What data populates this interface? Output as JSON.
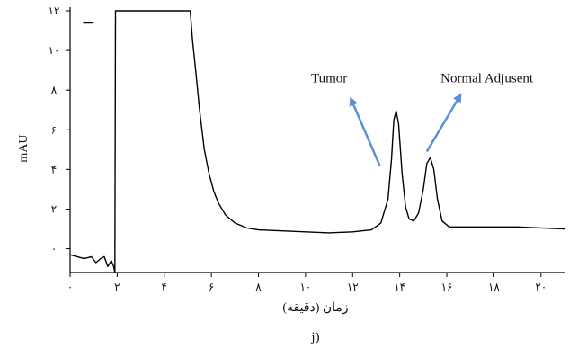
{
  "chart_data": {
    "type": "line",
    "panel_label": "j)",
    "xlabel": "زمان (دقیقه)",
    "ylabel": "mAU",
    "xlim": [
      0,
      21
    ],
    "ylim": [
      -1.2,
      12
    ],
    "xticks": [
      {
        "value": 0,
        "label": "۰"
      },
      {
        "value": 2,
        "label": "۲"
      },
      {
        "value": 4,
        "label": "۴"
      },
      {
        "value": 6,
        "label": "۶"
      },
      {
        "value": 8,
        "label": "۸"
      },
      {
        "value": 10,
        "label": "۱۰"
      },
      {
        "value": 12,
        "label": "۱۲"
      },
      {
        "value": 14,
        "label": "۱۴"
      },
      {
        "value": 16,
        "label": "۱۶"
      },
      {
        "value": 18,
        "label": "۱۸"
      },
      {
        "value": 20,
        "label": "۲۰"
      }
    ],
    "yticks": [
      {
        "value": 0,
        "label": "۰"
      },
      {
        "value": 2,
        "label": "۲"
      },
      {
        "value": 4,
        "label": "۴"
      },
      {
        "value": 6,
        "label": "۶"
      },
      {
        "value": 8,
        "label": "۸"
      },
      {
        "value": 10,
        "label": "۱۰"
      },
      {
        "value": 12,
        "label": "۱۲"
      }
    ],
    "series": [
      {
        "color": "#000000",
        "points": [
          [
            0.0,
            -0.3
          ],
          [
            0.3,
            -0.4
          ],
          [
            0.6,
            -0.5
          ],
          [
            0.9,
            -0.4
          ],
          [
            1.1,
            -0.7
          ],
          [
            1.3,
            -0.5
          ],
          [
            1.45,
            -0.4
          ],
          [
            1.6,
            -0.9
          ],
          [
            1.75,
            -0.6
          ],
          [
            1.85,
            -0.9
          ],
          [
            1.9,
            -1.2
          ],
          [
            1.93,
            12.0
          ],
          [
            5.1,
            12.0
          ],
          [
            5.2,
            10.5
          ],
          [
            5.35,
            8.8
          ],
          [
            5.5,
            7.0
          ],
          [
            5.7,
            5.0
          ],
          [
            5.9,
            3.8
          ],
          [
            6.1,
            2.9
          ],
          [
            6.3,
            2.3
          ],
          [
            6.6,
            1.7
          ],
          [
            7.0,
            1.3
          ],
          [
            7.5,
            1.05
          ],
          [
            8.0,
            0.95
          ],
          [
            9.0,
            0.9
          ],
          [
            10.0,
            0.85
          ],
          [
            11.0,
            0.8
          ],
          [
            12.0,
            0.85
          ],
          [
            12.8,
            0.95
          ],
          [
            13.2,
            1.3
          ],
          [
            13.5,
            2.5
          ],
          [
            13.65,
            4.5
          ],
          [
            13.75,
            6.5
          ],
          [
            13.85,
            6.95
          ],
          [
            13.95,
            6.3
          ],
          [
            14.1,
            3.8
          ],
          [
            14.25,
            2.1
          ],
          [
            14.4,
            1.5
          ],
          [
            14.6,
            1.4
          ],
          [
            14.8,
            1.8
          ],
          [
            15.0,
            3.0
          ],
          [
            15.15,
            4.3
          ],
          [
            15.3,
            4.6
          ],
          [
            15.45,
            4.0
          ],
          [
            15.6,
            2.5
          ],
          [
            15.8,
            1.4
          ],
          [
            16.1,
            1.1
          ],
          [
            17.0,
            1.1
          ],
          [
            18.0,
            1.1
          ],
          [
            19.0,
            1.1
          ],
          [
            20.0,
            1.05
          ],
          [
            21.0,
            1.0
          ]
        ]
      }
    ],
    "top_marker": {
      "x1": 0.55,
      "x2": 1.0,
      "y": 11.4
    },
    "annotations": [
      {
        "text": "Tumor",
        "arrow_from": [
          13.15,
          4.2
        ],
        "arrow_to": [
          11.95,
          7.5
        ],
        "text_at": [
          11.0,
          8.4
        ]
      },
      {
        "text": "Normal Adjusent",
        "arrow_from": [
          15.15,
          4.9
        ],
        "arrow_to": [
          16.55,
          7.7
        ],
        "text_at": [
          17.7,
          8.4
        ]
      }
    ],
    "arrow_color": "#5b8fd6"
  }
}
